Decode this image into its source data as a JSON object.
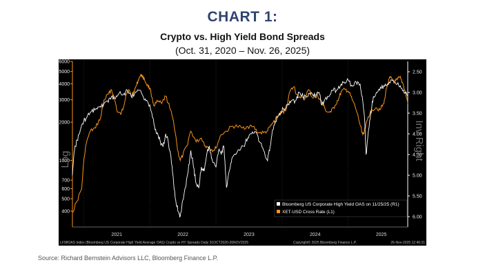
{
  "header": {
    "title": "CHART 1:",
    "subtitle": "Crypto vs. High Yield Bond Spreads",
    "date_range": "(Oct. 31, 2020 – Nov. 26, 2025)"
  },
  "source_note": "Source: Richard Bernstein Advisors LLC, Bloomberg Finance L.P.",
  "terminal": {
    "left_axis_tag": "Log",
    "right_axis_tag": "Inv Right",
    "footer_left": "LF98OAS Index (Bloomberg US Corporate High Yield Average OAS) Crypto vs HY Spreads Daily 31OCT2020-26NOV2025",
    "footer_mid": "Copyright© 2025 Bloomberg Finance L.P.",
    "footer_right": "26-Nov-2025 12:46:31"
  },
  "colors": {
    "crypto": "#f7931a",
    "hy": "#ffffff",
    "background": "#000000",
    "axis": "#f7931a",
    "grid": "#3a3a3a",
    "title": "#2e4372"
  },
  "chart_data": {
    "type": "line",
    "title": "Crypto vs. High Yield Bond Spreads",
    "x_labels": [
      "2021",
      "2022",
      "2023",
      "2024",
      "2025"
    ],
    "x_start": "2020-10-31",
    "x_end": "2025-11-26",
    "y_left": {
      "scale": "log",
      "ylim": [
        300,
        6000
      ],
      "ticks": [
        6000,
        5000,
        4000,
        3000,
        2000,
        1000,
        700,
        600,
        500,
        400
      ],
      "label": "Log"
    },
    "y_right": {
      "scale": "linear",
      "inverted": true,
      "ylim": [
        2.25,
        6.25
      ],
      "ticks": [
        "2.50",
        "3.00",
        "3.50",
        "4.00",
        "4.50",
        "5.00",
        "5.50",
        "6.00"
      ]
    },
    "legend": [
      {
        "name": "Bloomberg US Corporate High Yield OAS on 11/25/25 (R1)",
        "color": "#ffffff"
      },
      {
        "name": "XET-USD Cross Rate (L1)",
        "color": "#f7931a"
      }
    ],
    "series": [
      {
        "name": "XET-USD Cross Rate (L1)",
        "axis": "left",
        "color": "#f7931a",
        "t": [
          2020.83,
          2020.9,
          2020.97,
          2021.03,
          2021.1,
          2021.18,
          2021.26,
          2021.31,
          2021.37,
          2021.42,
          2021.46,
          2021.51,
          2021.56,
          2021.6,
          2021.64,
          2021.68,
          2021.72,
          2021.76,
          2021.8,
          2021.84,
          2021.88,
          2021.92,
          2021.96,
          2022.0,
          2022.06,
          2022.12,
          2022.18,
          2022.24,
          2022.3,
          2022.36,
          2022.42,
          2022.46,
          2022.5,
          2022.56,
          2022.62,
          2022.7,
          2022.78,
          2022.84,
          2022.9,
          2022.96,
          2023.0,
          2023.08,
          2023.16,
          2023.24,
          2023.32,
          2023.4,
          2023.48,
          2023.56,
          2023.64,
          2023.72,
          2023.78,
          2023.84,
          2023.9,
          2023.96,
          2024.0,
          2024.06,
          2024.12,
          2024.18,
          2024.22,
          2024.28,
          2024.34,
          2024.4,
          2024.46,
          2024.52,
          2024.58,
          2024.62,
          2024.68,
          2024.74,
          2024.8,
          2024.86,
          2024.9,
          2024.96,
          2025.0,
          2025.06,
          2025.12,
          2025.18,
          2025.22,
          2025.26,
          2025.3,
          2025.36,
          2025.42,
          2025.48,
          2025.54,
          2025.58,
          2025.62,
          2025.66,
          2025.7,
          2025.74,
          2025.78,
          2025.82,
          2025.86,
          2025.9
        ],
        "values": [
          390,
          480,
          600,
          1300,
          1700,
          1800,
          2200,
          3000,
          3300,
          3600,
          3100,
          2400,
          2300,
          2600,
          3300,
          3600,
          3200,
          3500,
          3900,
          4500,
          4700,
          4300,
          3900,
          3700,
          2700,
          2900,
          2800,
          3200,
          2600,
          2000,
          1200,
          1000,
          1100,
          1300,
          1700,
          1400,
          1500,
          1300,
          1250,
          1200,
          1250,
          1600,
          1700,
          1850,
          1850,
          1800,
          1850,
          1850,
          1650,
          1650,
          1700,
          1900,
          2100,
          2300,
          2400,
          2500,
          3500,
          3800,
          3300,
          3100,
          3000,
          3600,
          3100,
          3300,
          3000,
          2700,
          2400,
          2400,
          2700,
          3100,
          3500,
          3600,
          3500,
          3000,
          2500,
          1900,
          1600,
          1800,
          2200,
          2500,
          2600,
          2500,
          2800,
          3700,
          4400,
          4400,
          4100,
          4300,
          4500,
          4100,
          3500,
          2800
        ]
      },
      {
        "name": "Bloomberg US Corporate High Yield OAS on 11/25/25 (R1)",
        "axis": "right",
        "color": "#ffffff",
        "t": [
          2020.83,
          2020.86,
          2020.9,
          2020.95,
          2021.0,
          2021.06,
          2021.12,
          2021.18,
          2021.24,
          2021.3,
          2021.36,
          2021.42,
          2021.48,
          2021.54,
          2021.6,
          2021.66,
          2021.72,
          2021.78,
          2021.84,
          2021.9,
          2021.94,
          2022.0,
          2022.04,
          2022.08,
          2022.12,
          2022.16,
          2022.2,
          2022.24,
          2022.28,
          2022.32,
          2022.36,
          2022.4,
          2022.44,
          2022.46,
          2022.5,
          2022.54,
          2022.58,
          2022.62,
          2022.66,
          2022.7,
          2022.74,
          2022.78,
          2022.82,
          2022.86,
          2022.9,
          2022.94,
          2023.0,
          2023.04,
          2023.08,
          2023.12,
          2023.16,
          2023.2,
          2023.24,
          2023.3,
          2023.36,
          2023.42,
          2023.48,
          2023.54,
          2023.6,
          2023.66,
          2023.72,
          2023.78,
          2023.82,
          2023.86,
          2023.9,
          2023.96,
          2024.02,
          2024.08,
          2024.14,
          2024.2,
          2024.26,
          2024.32,
          2024.38,
          2024.44,
          2024.5,
          2024.56,
          2024.6,
          2024.64,
          2024.7,
          2024.76,
          2024.82,
          2024.88,
          2024.94,
          2025.0,
          2025.06,
          2025.12,
          2025.18,
          2025.22,
          2025.25,
          2025.27,
          2025.3,
          2025.34,
          2025.38,
          2025.44,
          2025.5,
          2025.56,
          2025.62,
          2025.68,
          2025.74,
          2025.8,
          2025.86,
          2025.9
        ],
        "values": [
          5.0,
          4.4,
          4.15,
          3.9,
          3.7,
          3.55,
          3.45,
          3.4,
          3.35,
          3.3,
          3.2,
          3.1,
          3.15,
          3.0,
          3.05,
          2.95,
          3.1,
          3.0,
          2.95,
          3.1,
          3.2,
          3.3,
          3.6,
          3.9,
          4.0,
          4.2,
          4.3,
          4.0,
          4.2,
          4.55,
          5.2,
          5.7,
          5.9,
          6.0,
          5.6,
          5.3,
          4.9,
          4.4,
          4.8,
          5.2,
          5.3,
          4.8,
          4.9,
          4.5,
          4.3,
          4.6,
          4.8,
          4.4,
          4.5,
          4.3,
          5.3,
          4.9,
          4.6,
          4.5,
          4.4,
          4.3,
          4.1,
          4.0,
          3.95,
          4.2,
          4.4,
          4.65,
          4.3,
          3.9,
          3.7,
          3.5,
          3.4,
          3.3,
          3.2,
          3.2,
          3.0,
          3.1,
          3.1,
          3.0,
          3.1,
          3.0,
          3.3,
          3.2,
          3.1,
          2.95,
          2.95,
          2.85,
          2.75,
          2.7,
          2.85,
          2.75,
          2.8,
          3.2,
          3.7,
          4.5,
          4.0,
          3.5,
          3.1,
          3.0,
          2.9,
          2.8,
          2.75,
          2.7,
          2.8,
          2.9,
          3.0,
          3.1
        ]
      }
    ]
  }
}
